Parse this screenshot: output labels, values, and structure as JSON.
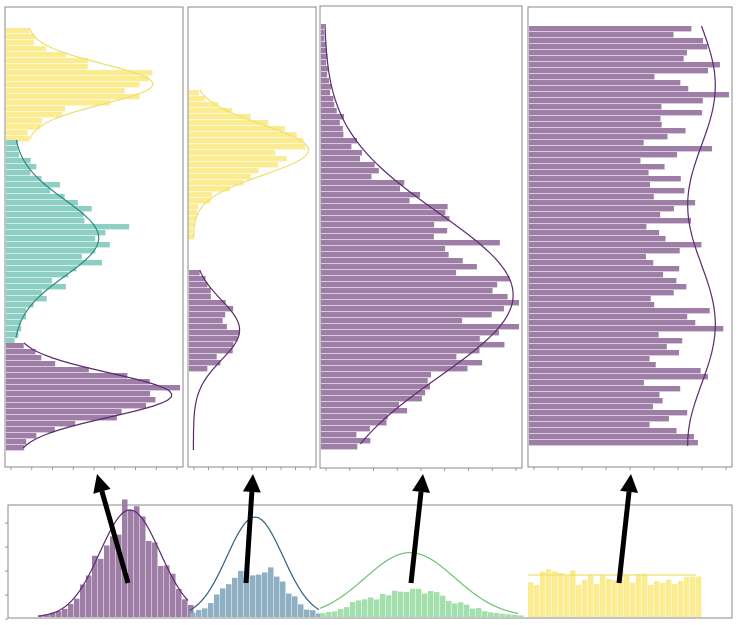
{
  "colors": {
    "purple": "#9e7ea7",
    "purple_line": "#5b2a6e",
    "teal": "#8ecfc4",
    "teal_line": "#2d8a86",
    "yellow": "#fbec92",
    "yellow_line": "#efe06a",
    "blue_gray": "#8fb0c2",
    "blue_line": "#2f5f7e",
    "green": "#a4e0ae",
    "green_line": "#69c56f",
    "frame": "#888888",
    "arrow": "#000000"
  },
  "icons": [
    "arrow-up-icon"
  ],
  "panels": [
    {
      "name": "panel-1",
      "bands": [
        "yellow",
        "teal",
        "purple"
      ]
    },
    {
      "name": "panel-2",
      "bands": [
        "yellow",
        "purple"
      ]
    },
    {
      "name": "panel-3",
      "bands": [
        "purple"
      ]
    },
    {
      "name": "panel-4",
      "bands": [
        "purple"
      ]
    }
  ],
  "bottom_panel": {
    "groups": [
      "purple",
      "blue_gray",
      "green",
      "yellow"
    ]
  }
}
